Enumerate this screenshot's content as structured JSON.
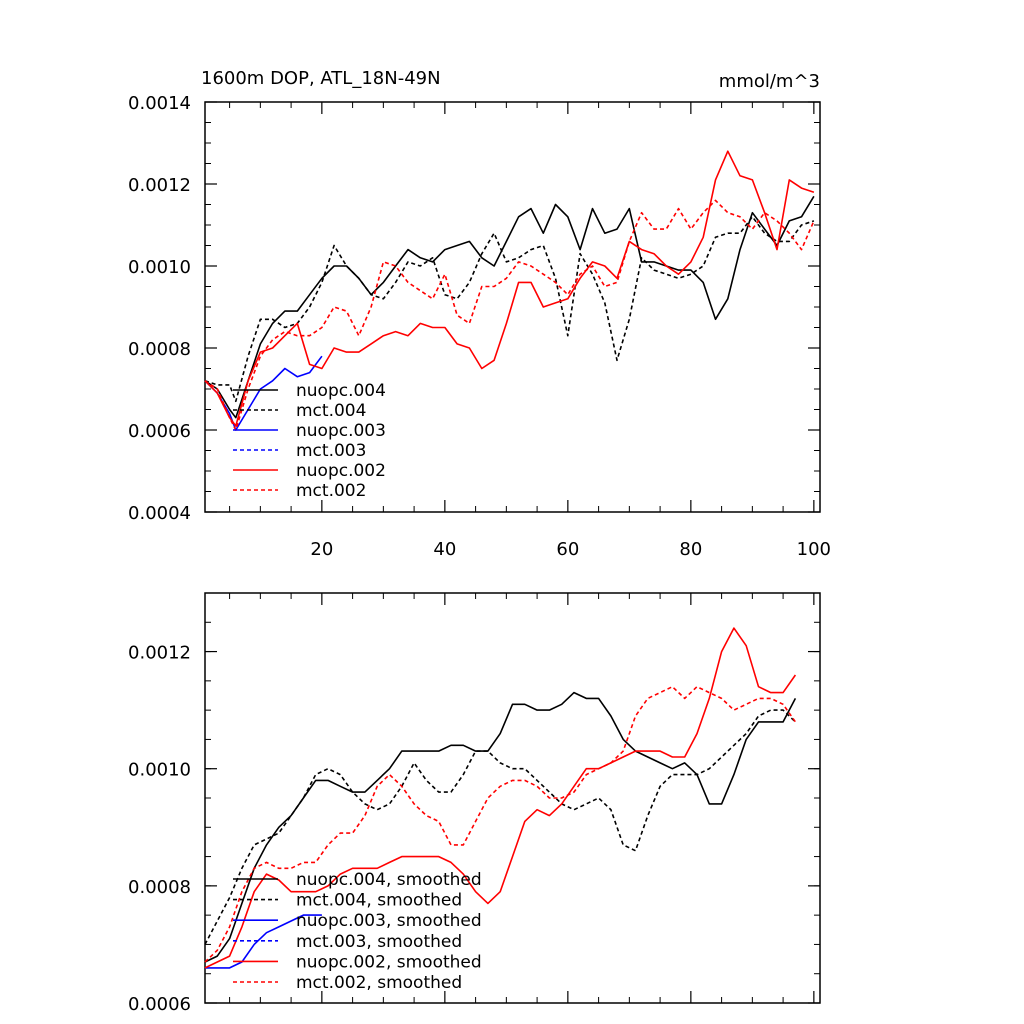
{
  "colors": {
    "black": "#000000",
    "blue": "#0000ff",
    "red": "#ff0000"
  },
  "chart_data": [
    {
      "type": "line",
      "title": "1600m DOP, ATL_18N-49N",
      "units": "mmol/m^3",
      "ylim": [
        0.0004,
        0.0014
      ],
      "xlim": [
        1,
        101
      ],
      "yticks": [
        0.0004,
        0.0006,
        0.0008,
        0.001,
        0.0012,
        0.0014
      ],
      "ytick_labels": [
        "0.0004",
        "0.0006",
        "0.0008",
        "0.0010",
        "0.0012",
        "0.0014"
      ],
      "xticks": [
        20,
        40,
        60,
        80,
        100
      ],
      "xtick_labels": [
        "20",
        "40",
        "60",
        "80",
        "100"
      ],
      "legend_position": "lower-left",
      "series": [
        {
          "name": "nuopc.004",
          "color": "black",
          "dashed": false,
          "x": [
            1,
            3,
            5,
            6,
            8,
            10,
            12,
            14,
            16,
            18,
            20,
            22,
            24,
            26,
            28,
            30,
            32,
            34,
            36,
            38,
            40,
            42,
            44,
            46,
            48,
            50,
            52,
            54,
            56,
            58,
            60,
            62,
            64,
            66,
            68,
            70,
            72,
            74,
            76,
            78,
            80,
            82,
            84,
            86,
            88,
            90,
            92,
            94,
            96,
            98,
            100
          ],
          "values": [
            0.00072,
            0.0007,
            0.00065,
            0.00063,
            0.00072,
            0.00081,
            0.00086,
            0.00089,
            0.00089,
            0.00093,
            0.00097,
            0.001,
            0.001,
            0.00097,
            0.00093,
            0.00096,
            0.001,
            0.00104,
            0.00102,
            0.00101,
            0.00104,
            0.00105,
            0.00106,
            0.00102,
            0.001,
            0.00106,
            0.00112,
            0.00114,
            0.00108,
            0.00115,
            0.00112,
            0.00104,
            0.00114,
            0.00108,
            0.00109,
            0.00114,
            0.00101,
            0.00101,
            0.001,
            0.00099,
            0.00099,
            0.00096,
            0.00087,
            0.00092,
            0.00104,
            0.00113,
            0.00109,
            0.00105,
            0.00111,
            0.00112,
            0.00117
          ]
        },
        {
          "name": "mct.004",
          "color": "black",
          "dashed": true,
          "x": [
            1,
            3,
            5,
            6,
            8,
            10,
            12,
            14,
            16,
            18,
            20,
            22,
            24,
            26,
            28,
            30,
            32,
            34,
            36,
            38,
            40,
            42,
            44,
            46,
            48,
            50,
            52,
            54,
            56,
            58,
            60,
            62,
            64,
            66,
            68,
            70,
            72,
            74,
            76,
            78,
            80,
            82,
            84,
            86,
            88,
            90,
            92,
            94,
            96,
            98,
            100
          ],
          "values": [
            0.00072,
            0.00071,
            0.00071,
            0.00067,
            0.00078,
            0.00087,
            0.00087,
            0.00085,
            0.00086,
            0.0009,
            0.00096,
            0.00105,
            0.001,
            0.00097,
            0.00093,
            0.00092,
            0.00096,
            0.00101,
            0.001,
            0.00102,
            0.00093,
            0.00092,
            0.00096,
            0.00103,
            0.00108,
            0.00101,
            0.00102,
            0.00104,
            0.00105,
            0.00097,
            0.00083,
            0.00103,
            0.00098,
            0.00091,
            0.00077,
            0.00087,
            0.00102,
            0.00099,
            0.00098,
            0.00097,
            0.00098,
            0.001,
            0.00107,
            0.00108,
            0.00108,
            0.00112,
            0.00108,
            0.00106,
            0.00106,
            0.0011,
            0.00111
          ]
        },
        {
          "name": "nuopc.003",
          "color": "blue",
          "dashed": false,
          "x": [
            1,
            3,
            5,
            6,
            8,
            10,
            12,
            14,
            16,
            18,
            20
          ],
          "values": [
            0.00072,
            0.00069,
            0.00064,
            0.0006,
            0.00065,
            0.0007,
            0.00072,
            0.00075,
            0.00073,
            0.00074,
            0.00078
          ]
        },
        {
          "name": "mct.003",
          "color": "blue",
          "dashed": true,
          "x": [],
          "values": []
        },
        {
          "name": "nuopc.002",
          "color": "red",
          "dashed": false,
          "x": [
            1,
            3,
            5,
            6,
            8,
            10,
            12,
            14,
            16,
            18,
            20,
            22,
            24,
            26,
            28,
            30,
            32,
            34,
            36,
            38,
            40,
            42,
            44,
            46,
            48,
            50,
            52,
            54,
            56,
            58,
            60,
            62,
            64,
            66,
            68,
            70,
            72,
            74,
            76,
            78,
            80,
            82,
            84,
            86,
            88,
            90,
            92,
            94,
            96,
            98,
            100
          ],
          "values": [
            0.00072,
            0.00069,
            0.00063,
            0.00061,
            0.00072,
            0.00079,
            0.0008,
            0.00083,
            0.00086,
            0.00076,
            0.00075,
            0.0008,
            0.00079,
            0.00079,
            0.00081,
            0.00083,
            0.00084,
            0.00083,
            0.00086,
            0.00085,
            0.00085,
            0.00081,
            0.0008,
            0.00075,
            0.00077,
            0.00086,
            0.00096,
            0.00096,
            0.0009,
            0.00091,
            0.00092,
            0.00097,
            0.00101,
            0.001,
            0.00097,
            0.00106,
            0.00104,
            0.00103,
            0.001,
            0.00098,
            0.00101,
            0.00107,
            0.00121,
            0.00128,
            0.00122,
            0.00121,
            0.00113,
            0.00104,
            0.00121,
            0.00119,
            0.00118
          ]
        },
        {
          "name": "mct.002",
          "color": "red",
          "dashed": true,
          "x": [
            1,
            3,
            5,
            6,
            8,
            10,
            12,
            14,
            16,
            18,
            20,
            22,
            24,
            26,
            28,
            30,
            32,
            34,
            36,
            38,
            40,
            42,
            44,
            46,
            48,
            50,
            52,
            54,
            56,
            58,
            60,
            62,
            64,
            66,
            68,
            70,
            72,
            74,
            76,
            78,
            80,
            82,
            84,
            86,
            88,
            90,
            92,
            94,
            96,
            98,
            100
          ],
          "values": [
            0.00072,
            0.0007,
            0.00063,
            0.0006,
            0.0007,
            0.00078,
            0.00082,
            0.00084,
            0.00083,
            0.00083,
            0.00085,
            0.0009,
            0.00089,
            0.00083,
            0.0009,
            0.00101,
            0.001,
            0.00096,
            0.00094,
            0.00092,
            0.00098,
            0.00088,
            0.00086,
            0.00095,
            0.00095,
            0.00097,
            0.00101,
            0.001,
            0.00098,
            0.00096,
            0.00093,
            0.00098,
            0.001,
            0.00095,
            0.00096,
            0.00106,
            0.00113,
            0.00109,
            0.00109,
            0.00114,
            0.00109,
            0.00113,
            0.00116,
            0.00113,
            0.00112,
            0.00109,
            0.00113,
            0.00111,
            0.00108,
            0.00104,
            0.00111
          ]
        }
      ]
    },
    {
      "type": "line",
      "ylim": [
        0.0006,
        0.0013
      ],
      "xlim": [
        1,
        101
      ],
      "yticks": [
        0.0006,
        0.0008,
        0.001,
        0.0012
      ],
      "ytick_labels": [
        "0.0006",
        "0.0008",
        "0.0010",
        "0.0012"
      ],
      "xticks": [
        20,
        40,
        60,
        80,
        100
      ],
      "legend_position": "lower-left",
      "series": [
        {
          "name": "nuopc.004, smoothed",
          "color": "black",
          "dashed": false,
          "x": [
            1,
            3,
            5,
            7,
            9,
            11,
            13,
            15,
            17,
            19,
            21,
            23,
            25,
            27,
            29,
            31,
            33,
            35,
            37,
            39,
            41,
            43,
            45,
            47,
            49,
            51,
            53,
            55,
            57,
            59,
            61,
            63,
            65,
            67,
            69,
            71,
            73,
            75,
            77,
            79,
            81,
            83,
            85,
            87,
            89,
            91,
            93,
            95,
            97
          ],
          "values": [
            0.00067,
            0.00068,
            0.00071,
            0.00077,
            0.00083,
            0.00087,
            0.0009,
            0.00092,
            0.00095,
            0.00098,
            0.00098,
            0.00097,
            0.00096,
            0.00096,
            0.00098,
            0.001,
            0.00103,
            0.00103,
            0.00103,
            0.00103,
            0.00104,
            0.00104,
            0.00103,
            0.00103,
            0.00106,
            0.00111,
            0.00111,
            0.0011,
            0.0011,
            0.00111,
            0.00113,
            0.00112,
            0.00112,
            0.00109,
            0.00105,
            0.00103,
            0.00102,
            0.00101,
            0.001,
            0.00101,
            0.00099,
            0.00094,
            0.00094,
            0.00099,
            0.00105,
            0.00108,
            0.00108,
            0.00108,
            0.00112
          ]
        },
        {
          "name": "mct.004, smoothed",
          "color": "black",
          "dashed": true,
          "x": [
            1,
            3,
            5,
            7,
            9,
            11,
            13,
            15,
            17,
            19,
            21,
            23,
            25,
            27,
            29,
            31,
            33,
            35,
            37,
            39,
            41,
            43,
            45,
            47,
            49,
            51,
            53,
            55,
            57,
            59,
            61,
            63,
            65,
            67,
            69,
            71,
            73,
            75,
            77,
            79,
            81,
            83,
            85,
            87,
            89,
            91,
            93,
            95,
            97
          ],
          "values": [
            0.0007,
            0.00074,
            0.00078,
            0.00083,
            0.00087,
            0.00088,
            0.00089,
            0.00092,
            0.00095,
            0.00099,
            0.001,
            0.00099,
            0.00096,
            0.00094,
            0.00093,
            0.00094,
            0.00097,
            0.00101,
            0.00098,
            0.00096,
            0.00096,
            0.00099,
            0.00103,
            0.00103,
            0.00101,
            0.001,
            0.001,
            0.00098,
            0.00096,
            0.00094,
            0.00093,
            0.00094,
            0.00095,
            0.00093,
            0.00087,
            0.00086,
            0.00092,
            0.00097,
            0.00099,
            0.00099,
            0.00099,
            0.001,
            0.00102,
            0.00104,
            0.00106,
            0.00109,
            0.0011,
            0.0011,
            0.00108
          ]
        },
        {
          "name": "nuopc.003, smoothed",
          "color": "blue",
          "dashed": false,
          "x": [
            1,
            3,
            5,
            7,
            9,
            11,
            13,
            15,
            17,
            19,
            20
          ],
          "values": [
            0.00066,
            0.00066,
            0.00066,
            0.00067,
            0.0007,
            0.00072,
            0.00073,
            0.00074,
            0.00075,
            0.00075,
            0.00075
          ]
        },
        {
          "name": "mct.003, smoothed",
          "color": "blue",
          "dashed": true,
          "x": [],
          "values": []
        },
        {
          "name": "nuopc.002, smoothed",
          "color": "red",
          "dashed": false,
          "x": [
            1,
            3,
            5,
            7,
            9,
            11,
            13,
            15,
            17,
            19,
            21,
            23,
            25,
            27,
            29,
            31,
            33,
            35,
            37,
            39,
            41,
            43,
            45,
            47,
            49,
            51,
            53,
            55,
            57,
            59,
            61,
            63,
            65,
            67,
            69,
            71,
            73,
            75,
            77,
            79,
            81,
            83,
            85,
            87,
            89,
            91,
            93,
            95,
            97
          ],
          "values": [
            0.00066,
            0.00067,
            0.00068,
            0.00073,
            0.00079,
            0.00082,
            0.00081,
            0.00079,
            0.00079,
            0.00079,
            0.0008,
            0.00082,
            0.00083,
            0.00083,
            0.00083,
            0.00084,
            0.00085,
            0.00085,
            0.00085,
            0.00085,
            0.00084,
            0.00082,
            0.00079,
            0.00077,
            0.00079,
            0.00085,
            0.00091,
            0.00093,
            0.00092,
            0.00094,
            0.00097,
            0.001,
            0.001,
            0.00101,
            0.00102,
            0.00103,
            0.00103,
            0.00103,
            0.00102,
            0.00102,
            0.00106,
            0.00112,
            0.0012,
            0.00124,
            0.00121,
            0.00114,
            0.00113,
            0.00113,
            0.00116
          ]
        },
        {
          "name": "mct.002, smoothed",
          "color": "red",
          "dashed": true,
          "x": [
            1,
            3,
            5,
            7,
            9,
            11,
            13,
            15,
            17,
            19,
            21,
            23,
            25,
            27,
            29,
            31,
            33,
            35,
            37,
            39,
            41,
            43,
            45,
            47,
            49,
            51,
            53,
            55,
            57,
            59,
            61,
            63,
            65,
            67,
            69,
            71,
            73,
            75,
            77,
            79,
            81,
            83,
            85,
            87,
            89,
            91,
            93,
            95,
            97
          ],
          "values": [
            0.00067,
            0.00069,
            0.00073,
            0.00079,
            0.00083,
            0.00084,
            0.00083,
            0.00083,
            0.00084,
            0.00084,
            0.00087,
            0.00089,
            0.00089,
            0.00092,
            0.00097,
            0.00099,
            0.00097,
            0.00094,
            0.00092,
            0.00091,
            0.00087,
            0.00087,
            0.00091,
            0.00095,
            0.00097,
            0.00098,
            0.00098,
            0.00097,
            0.00095,
            0.00095,
            0.00096,
            0.00099,
            0.001,
            0.00101,
            0.00103,
            0.00109,
            0.00112,
            0.00113,
            0.00114,
            0.00112,
            0.00114,
            0.00113,
            0.00112,
            0.0011,
            0.00111,
            0.00112,
            0.00112,
            0.00111,
            0.00108
          ]
        }
      ]
    }
  ]
}
